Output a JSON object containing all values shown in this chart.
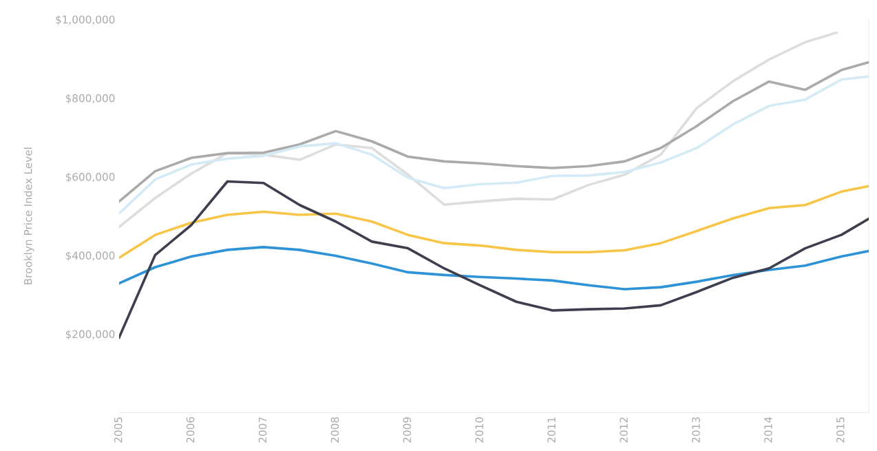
{
  "chart_data": {
    "type": "line",
    "ylabel": "Brooklyn Price Index Level",
    "x": [
      2005,
      2005.5,
      2006,
      2006.5,
      2007,
      2007.5,
      2008,
      2008.5,
      2009,
      2009.5,
      2010,
      2010.5,
      2011,
      2011.5,
      2012,
      2012.5,
      2013,
      2013.5,
      2014,
      2014.5,
      2015,
      2015.38
    ],
    "xlim": [
      2005,
      2015.38
    ],
    "xticks": [
      2005,
      2006,
      2007,
      2008,
      2009,
      2010,
      2011,
      2012,
      2013,
      2014,
      2015
    ],
    "ylim": [
      0,
      1000000
    ],
    "yticks": [
      {
        "value": 200000,
        "label": "$200,000"
      },
      {
        "value": 400000,
        "label": "$400,000"
      },
      {
        "value": 600000,
        "label": "$600,000"
      },
      {
        "value": 800000,
        "label": "$800,000"
      },
      {
        "value": 1000000,
        "label": "$1,000,000"
      }
    ],
    "grid": false,
    "marker": "none",
    "line_style": "solid",
    "series": [
      {
        "color": "#dddddd",
        "x": [
          2005,
          2005.5,
          2006,
          2006.5,
          2007,
          2007.5,
          2008,
          2008.5,
          2009,
          2009.5,
          2010,
          2010.5,
          2011,
          2011.5,
          2012,
          2012.5,
          2013,
          2013.5,
          2014,
          2014.5,
          2014.93
        ],
        "values": [
          472000,
          546000,
          608000,
          660000,
          656000,
          643000,
          682000,
          673000,
          605000,
          529000,
          537000,
          544000,
          542000,
          579000,
          605000,
          656000,
          775000,
          843000,
          898000,
          942000,
          966000
        ]
      },
      {
        "color": "#aaaaaa",
        "values": [
          537000,
          614000,
          648000,
          660000,
          661000,
          682000,
          716000,
          690000,
          651000,
          639000,
          634000,
          627000,
          622000,
          627000,
          639000,
          673000,
          729000,
          792000,
          842000,
          821000,
          871000,
          891000
        ]
      },
      {
        "color": "#d4ebf7",
        "values": [
          506000,
          593000,
          631000,
          646000,
          653000,
          677000,
          685000,
          656000,
          597000,
          571000,
          581000,
          585000,
          602000,
          603000,
          612000,
          636000,
          673000,
          733000,
          780000,
          796000,
          847000,
          855000
        ]
      },
      {
        "color": "#f7c548",
        "values": [
          394000,
          452000,
          483000,
          503000,
          511000,
          503000,
          506000,
          486000,
          452000,
          431000,
          425000,
          414000,
          408000,
          408000,
          413000,
          431000,
          462000,
          494000,
          520000,
          528000,
          562000,
          576000
        ]
      },
      {
        "color": "#2e93d6",
        "values": [
          329000,
          370000,
          397000,
          414000,
          421000,
          414000,
          399000,
          379000,
          357000,
          350000,
          345000,
          341000,
          336000,
          324000,
          314000,
          319000,
          333000,
          350000,
          363000,
          374000,
          397000,
          411000
        ]
      },
      {
        "color": "#3d3f4f",
        "values": [
          191000,
          401000,
          477000,
          588000,
          584000,
          528000,
          486000,
          435000,
          418000,
          367000,
          324000,
          282000,
          260000,
          263000,
          265000,
          273000,
          307000,
          343000,
          367000,
          418000,
          452000,
          493000
        ]
      }
    ]
  }
}
